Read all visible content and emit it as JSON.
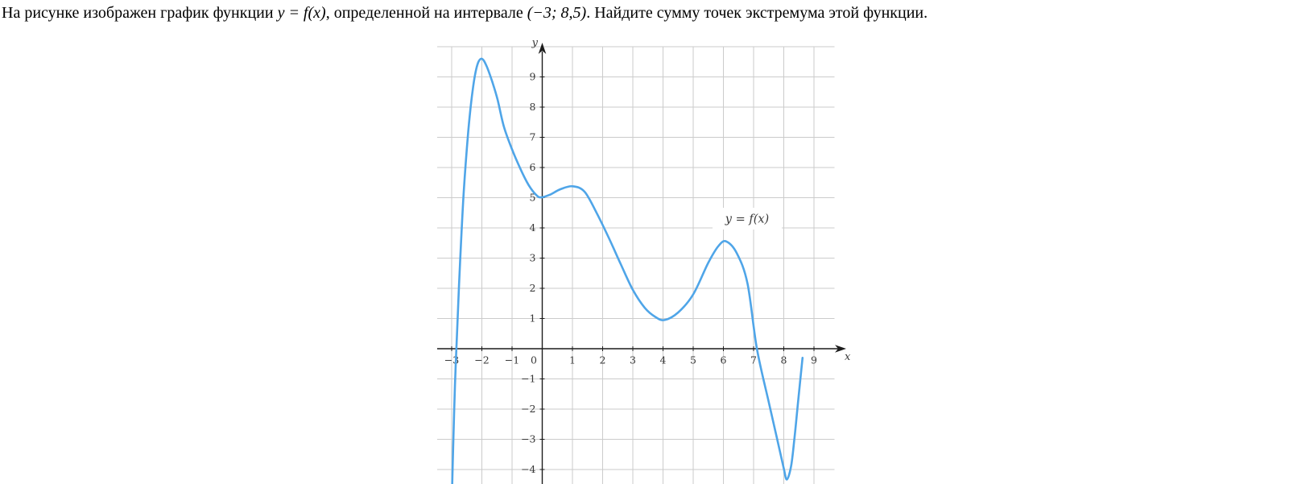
{
  "problem": {
    "part1": "На рисунке изображен график функции ",
    "math_function": "y = f(x)",
    "part2": ", определенной на интервале ",
    "math_interval": "(−3; 8,5)",
    "part3": ". Найдите сумму точек экстремума этой функции."
  },
  "chart_data": {
    "type": "line",
    "title": "",
    "curve_label": "y = f(x)",
    "xlabel": "x",
    "ylabel": "y",
    "xlim": [
      -3.5,
      9.9
    ],
    "ylim": [
      -4.55,
      10
    ],
    "xticks": [
      -3,
      -2,
      -1,
      0,
      1,
      2,
      3,
      4,
      5,
      6,
      7,
      8,
      9
    ],
    "yticks": [
      -4,
      -3,
      -2,
      -1,
      1,
      2,
      3,
      4,
      5,
      6,
      7,
      8,
      9
    ],
    "x_gridlines": [
      -3,
      -2,
      -1,
      0,
      1,
      2,
      3,
      4,
      5,
      6,
      7,
      8,
      9
    ],
    "y_gridlines": [
      -4,
      -3,
      -2,
      -1,
      0,
      1,
      2,
      3,
      4,
      5,
      6,
      7,
      8,
      9,
      10
    ],
    "grid": true,
    "legend_position": "inline-label",
    "function_domain": "(−3; 8,5)",
    "curve_color": "#4FA5E8",
    "grid_color": "#cbcbcb",
    "axis_color": "#1c1c1c",
    "tick_label_color": "#383838",
    "curve_points": [
      [
        -2.99,
        -4.75
      ],
      [
        -2.95,
        -3.2
      ],
      [
        -2.89,
        -1.2
      ],
      [
        -2.82,
        0.6
      ],
      [
        -2.72,
        2.9
      ],
      [
        -2.6,
        5.2
      ],
      [
        -2.45,
        7.2
      ],
      [
        -2.3,
        8.6
      ],
      [
        -2.15,
        9.4
      ],
      [
        -2.0,
        9.6
      ],
      [
        -1.84,
        9.35
      ],
      [
        -1.66,
        8.85
      ],
      [
        -1.48,
        8.25
      ],
      [
        -1.27,
        7.35
      ],
      [
        -1.0,
        6.6
      ],
      [
        -0.72,
        5.95
      ],
      [
        -0.45,
        5.42
      ],
      [
        -0.2,
        5.09
      ],
      [
        -0.04,
        5.01
      ],
      [
        0.25,
        5.1
      ],
      [
        0.6,
        5.28
      ],
      [
        1.0,
        5.38
      ],
      [
        1.4,
        5.2
      ],
      [
        1.8,
        4.5
      ],
      [
        2.2,
        3.68
      ],
      [
        2.6,
        2.8
      ],
      [
        3.0,
        1.95
      ],
      [
        3.4,
        1.35
      ],
      [
        3.75,
        1.05
      ],
      [
        4.05,
        0.95
      ],
      [
        4.5,
        1.2
      ],
      [
        5.0,
        1.8
      ],
      [
        5.5,
        2.85
      ],
      [
        5.85,
        3.42
      ],
      [
        6.1,
        3.55
      ],
      [
        6.45,
        3.15
      ],
      [
        6.8,
        2.15
      ],
      [
        7.11,
        0.0
      ],
      [
        7.51,
        -1.8
      ],
      [
        7.77,
        -2.95
      ],
      [
        7.99,
        -3.92
      ],
      [
        8.1,
        -4.33
      ],
      [
        8.24,
        -3.9
      ],
      [
        8.35,
        -3.0
      ],
      [
        8.47,
        -1.8
      ],
      [
        8.62,
        -0.3
      ]
    ],
    "extrema": [
      {
        "x": -2,
        "y": 9.6,
        "type": "max"
      },
      {
        "x": 0,
        "y": 5,
        "type": "min"
      },
      {
        "x": 1,
        "y": 5.4,
        "type": "max"
      },
      {
        "x": 4,
        "y": 1,
        "type": "min"
      },
      {
        "x": 6,
        "y": 3.5,
        "type": "max"
      },
      {
        "x": 8,
        "y": -4.3,
        "type": "min"
      }
    ]
  }
}
